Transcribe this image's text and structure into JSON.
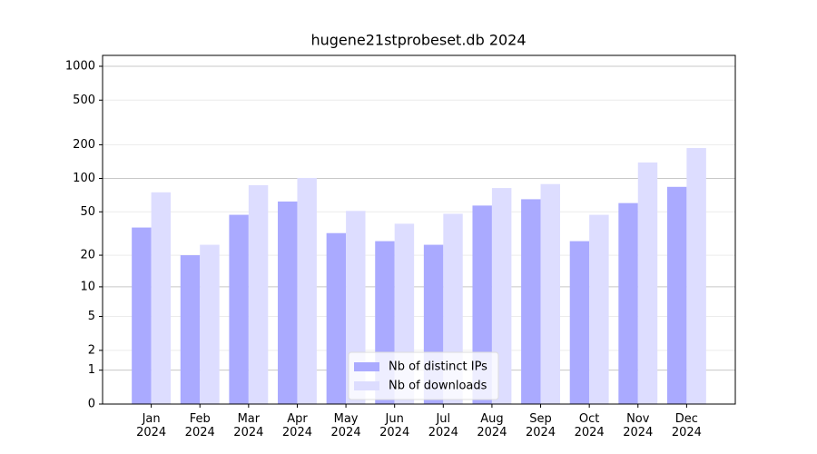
{
  "chart_data": {
    "type": "bar",
    "title": "hugene21stprobeset.db 2024",
    "categories": [
      "Jan\n2024",
      "Feb\n2024",
      "Mar\n2024",
      "Apr\n2024",
      "May\n2024",
      "Jun\n2024",
      "Jul\n2024",
      "Aug\n2024",
      "Sep\n2024",
      "Oct\n2024",
      "Nov\n2024",
      "Dec\n2024"
    ],
    "series": [
      {
        "name": "Nb of distinct IPs",
        "color": "#aaaaff",
        "values": [
          36,
          20,
          47,
          62,
          32,
          27,
          25,
          57,
          65,
          27,
          60,
          84
        ]
      },
      {
        "name": "Nb of downloads",
        "color": "#ddddff",
        "values": [
          75,
          25,
          87,
          101,
          51,
          39,
          48,
          82,
          89,
          47,
          139,
          187
        ]
      }
    ],
    "yscale": "log1p",
    "ylim": [
      0,
      1250
    ],
    "yticks": [
      0,
      1,
      2,
      5,
      10,
      20,
      50,
      100,
      200,
      500,
      1000
    ],
    "grid": true,
    "legend": "lower center"
  }
}
